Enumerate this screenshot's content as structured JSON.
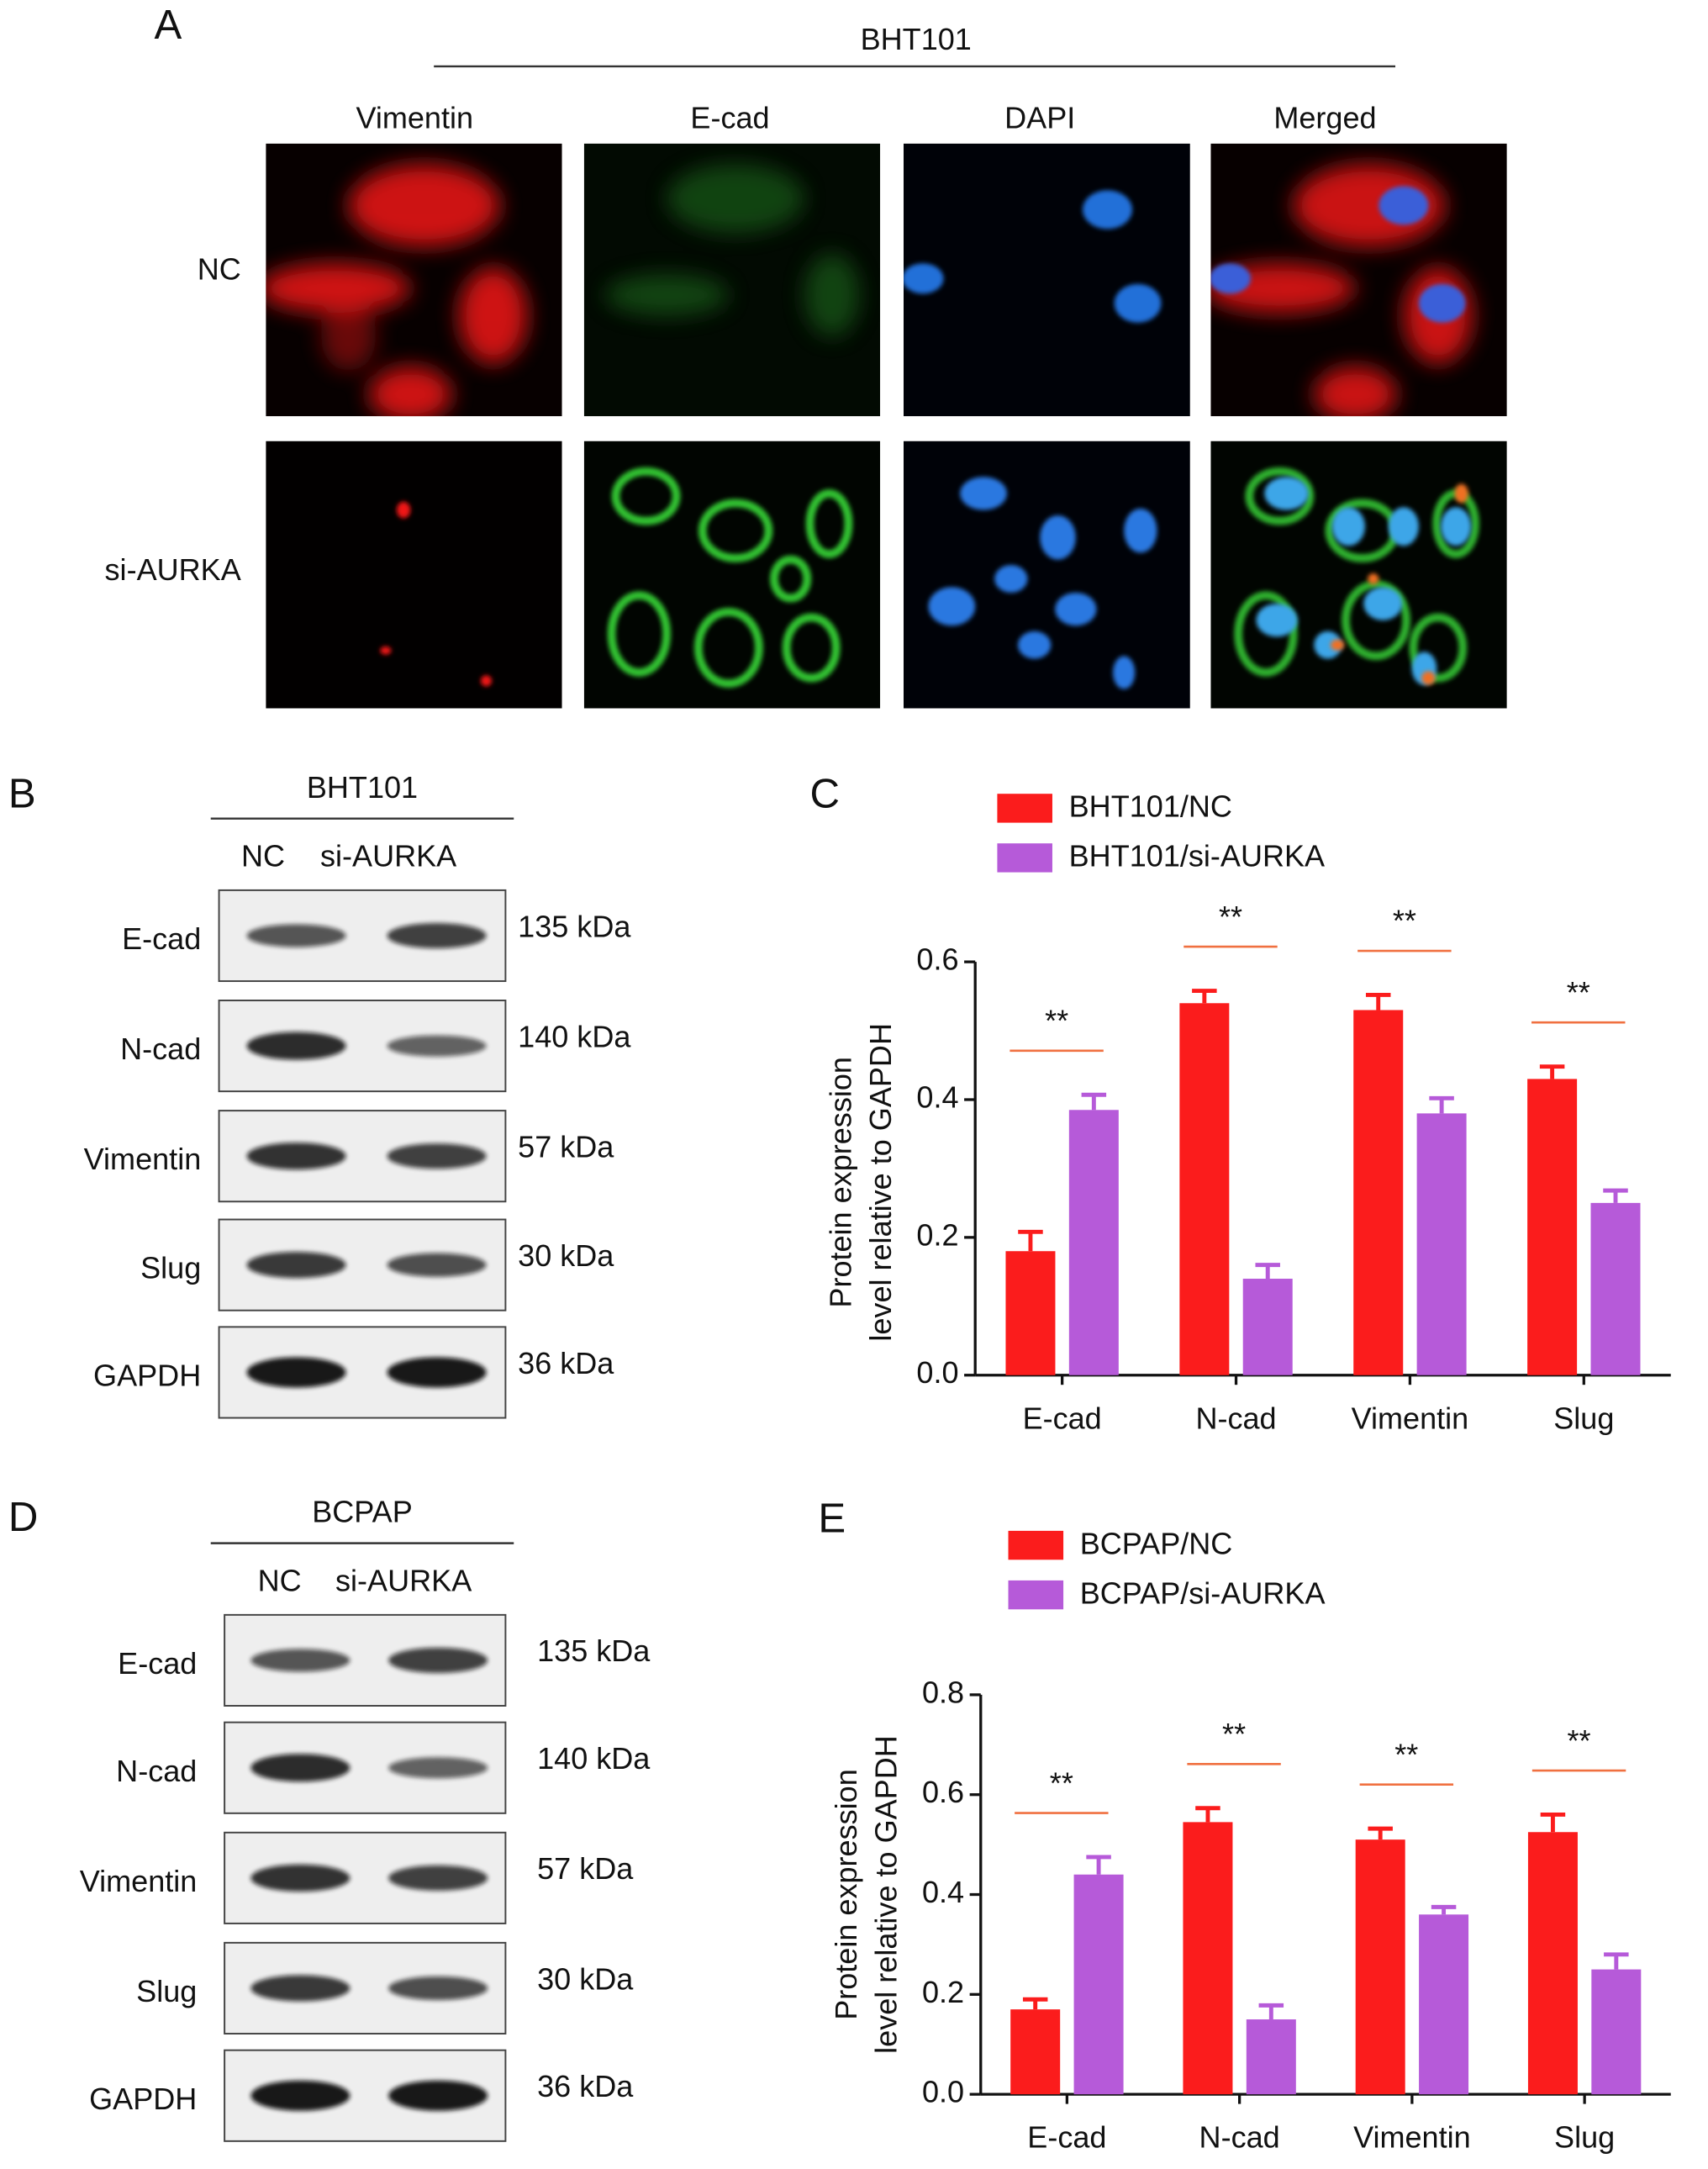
{
  "panel_a": {
    "label": "A",
    "cell_line": "BHT101",
    "columns": [
      "Vimentin",
      "E-cad",
      "DAPI",
      "Merged"
    ],
    "rows": [
      "NC",
      "si-AURKA"
    ]
  },
  "panel_b": {
    "label": "B",
    "cell_line": "BHT101",
    "lanes": [
      "NC",
      "si-AURKA"
    ],
    "proteins": [
      "E-cad",
      "N-cad",
      "Vimentin",
      "Slug",
      "GAPDH"
    ],
    "sizes": [
      "135 kDa",
      "140 kDa",
      "57 kDa",
      "30 kDa",
      "36 kDa"
    ]
  },
  "panel_d": {
    "label": "D",
    "cell_line": "BCPAP",
    "lanes": [
      "NC",
      "si-AURKA"
    ],
    "proteins": [
      "E-cad",
      "N-cad",
      "Vimentin",
      "Slug",
      "GAPDH"
    ],
    "sizes": [
      "135 kDa",
      "140 kDa",
      "57 kDa",
      "30 kDa",
      "36 kDa"
    ]
  },
  "chart_data": [
    {
      "type": "bar",
      "panel_label": "C",
      "y_label_lines": [
        "Protein expression",
        "level relative to GAPDH"
      ],
      "categories": [
        "E-cad",
        "N-cad",
        "Vimentin",
        "Slug"
      ],
      "series": [
        {
          "name": "BHT101/NC",
          "color": "#fb1c1c",
          "values": [
            0.18,
            0.54,
            0.53,
            0.43
          ],
          "errors": [
            0.028,
            0.018,
            0.022,
            0.018
          ]
        },
        {
          "name": "BHT101/si-AURKA",
          "color": "#b65ad9",
          "values": [
            0.385,
            0.14,
            0.38,
            0.25
          ],
          "errors": [
            0.022,
            0.02,
            0.022,
            0.018
          ]
        }
      ],
      "annotations": [
        "**",
        "**",
        "**",
        "**"
      ],
      "annotation_color": "#f07040",
      "ylim": [
        0,
        0.6
      ],
      "yticks": [
        {
          "value": 0,
          "label": "0.0"
        },
        0.2,
        0.4,
        0.6
      ]
    },
    {
      "type": "bar",
      "panel_label": "E",
      "y_label_lines": [
        "Protein expression",
        "level relative to GAPDH"
      ],
      "categories": [
        "E-cad",
        "N-cad",
        "Vimentin",
        "Slug"
      ],
      "series": [
        {
          "name": "BCPAP/NC",
          "color": "#fb1c1c",
          "values": [
            0.17,
            0.545,
            0.51,
            0.525
          ],
          "errors": [
            0.02,
            0.028,
            0.022,
            0.035
          ]
        },
        {
          "name": "BCPAP/si-AURKA",
          "color": "#b65ad9",
          "values": [
            0.44,
            0.15,
            0.36,
            0.25
          ],
          "errors": [
            0.035,
            0.028,
            0.015,
            0.03
          ]
        }
      ],
      "annotations": [
        "**",
        "**",
        "**",
        "**"
      ],
      "annotation_color": "#f07040",
      "ylim": [
        0,
        0.8
      ],
      "yticks": [
        {
          "value": 0,
          "label": "0.0"
        },
        0.2,
        0.4,
        0.6,
        0.8
      ]
    }
  ]
}
